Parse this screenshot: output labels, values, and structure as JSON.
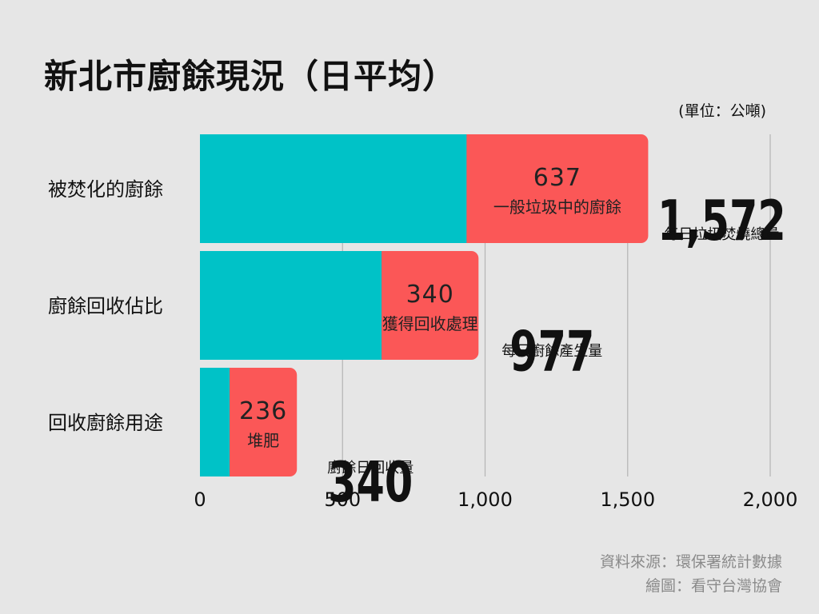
{
  "chart_data": {
    "type": "bar",
    "orientation": "horizontal",
    "stacked": true,
    "title": "新北市廚餘現況（日平均）",
    "unit_label": "(單位：公噸)",
    "categories": [
      "被焚化的廚餘",
      "廚餘回收佔比",
      "回收廚餘用途"
    ],
    "rows": [
      {
        "category": "被焚化的廚餘",
        "base": 935,
        "highlight": 637,
        "highlight_value_label": "637",
        "highlight_label": "一般垃圾中的廚餘",
        "total": 1572,
        "total_label": "1,572",
        "total_caption": "每日垃圾焚燒總量"
      },
      {
        "category": "廚餘回收佔比",
        "base": 637,
        "highlight": 340,
        "highlight_value_label": "340",
        "highlight_label": "獲得回收處理",
        "total": 977,
        "total_label": "977",
        "total_caption": "每日廚餘產生量"
      },
      {
        "category": "回收廚餘用途",
        "base": 104,
        "highlight": 236,
        "highlight_value_label": "236",
        "highlight_label": "堆肥",
        "total": 340,
        "total_label": "340",
        "total_caption": "廚餘日回收量"
      }
    ],
    "xlim": [
      0,
      2000
    ],
    "xticks": [
      0,
      500,
      1000,
      1500,
      2000
    ],
    "xtick_labels": [
      "0",
      "500",
      "1,000",
      "1,500",
      "2,000"
    ],
    "grid": true,
    "colors": {
      "base": "#00c2c7",
      "highlight": "#fb5757",
      "grid": "#b4b4b4",
      "background": "#e6e6e6"
    }
  },
  "footer": {
    "source": "資料來源：環保署統計數據",
    "credit": "繪圖：看守台灣協會"
  }
}
